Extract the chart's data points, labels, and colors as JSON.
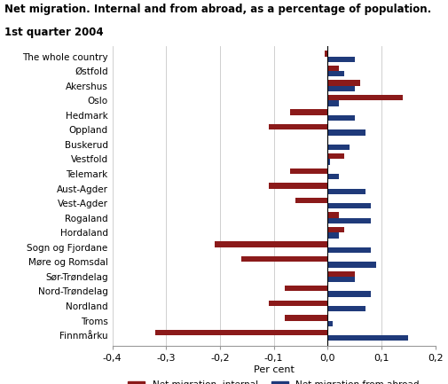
{
  "title_line1": "Net migration. Internal and from abroad, as a percentage of population.",
  "title_line2": "1st quarter 2004",
  "xlabel": "Per cent",
  "categories": [
    "The whole country",
    "Østfold",
    "Akershus",
    "Oslo",
    "Hedmark",
    "Oppland",
    "Buskerud",
    "Vestfold",
    "Telemark",
    "Aust-Agder",
    "Vest-Agder",
    "Rogaland",
    "Hordaland",
    "Sogn og Fjordane",
    "Møre og Romsdal",
    "Sør-Trøndelag",
    "Nord-Trøndelag",
    "Nordland",
    "Troms",
    "Finnmårku"
  ],
  "internal": [
    -0.005,
    0.02,
    0.06,
    0.14,
    -0.07,
    -0.11,
    0.0,
    0.03,
    -0.07,
    -0.11,
    -0.06,
    0.02,
    0.03,
    -0.21,
    -0.16,
    0.05,
    -0.08,
    -0.11,
    -0.08,
    -0.32
  ],
  "abroad": [
    0.05,
    0.03,
    0.05,
    0.02,
    0.05,
    0.07,
    0.04,
    0.005,
    0.02,
    0.07,
    0.08,
    0.08,
    0.02,
    0.08,
    0.09,
    0.05,
    0.08,
    0.07,
    0.01,
    0.15
  ],
  "internal_color": "#8B1A1A",
  "abroad_color": "#1F3A7A",
  "xlim": [
    -0.4,
    0.2
  ],
  "xticks": [
    -0.4,
    -0.3,
    -0.2,
    -0.1,
    0.0,
    0.1,
    0.2
  ],
  "xtick_labels": [
    "-0,4",
    "-0,3",
    "-0,2",
    "-0,1",
    "0,0",
    "0,1",
    "0,2"
  ],
  "bar_height": 0.38,
  "legend_internal": "Net migration, internal",
  "legend_abroad": "Net migration from abroad",
  "background_color": "#ffffff",
  "grid_color": "#c8c8c8"
}
